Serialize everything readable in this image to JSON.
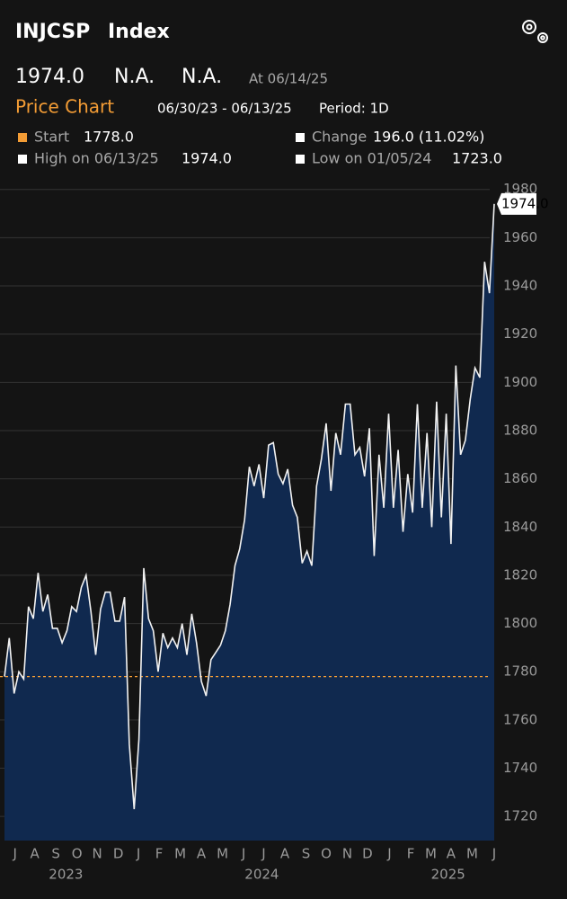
{
  "header": {
    "symbol": "INJCSP",
    "kind": "Index",
    "last": "1974.0",
    "field_2": "N.A.",
    "field_3": "N.A.",
    "as_of": "At 06/14/25"
  },
  "chart_header": {
    "title": "Price Chart",
    "range": "06/30/23 - 06/13/25",
    "period": "Period: 1D"
  },
  "legend": [
    {
      "label": "Start",
      "value": "1778.0",
      "marker_color": "#f39c35"
    },
    {
      "label": "Change",
      "value": "196.0 (11.02%)",
      "marker_color": "#ffffff"
    },
    {
      "label": "High on 06/13/25",
      "value": "1974.0",
      "marker_color": "#ffffff"
    },
    {
      "label": "Low on 01/05/24",
      "value": "1723.0",
      "marker_color": "#ffffff"
    }
  ],
  "chart_data": {
    "type": "area",
    "color": "#f2f2f2",
    "fill": "#10294f",
    "start_line_color": "#f39c35",
    "values": [
      1778,
      1794,
      1771,
      1780,
      1777,
      1807,
      1802,
      1821,
      1805,
      1812,
      1798,
      1798,
      1792,
      1797,
      1807,
      1805,
      1815,
      1820,
      1805,
      1787,
      1806,
      1813,
      1813,
      1801,
      1801,
      1811,
      1750,
      1723,
      1752,
      1823,
      1802,
      1797,
      1780,
      1796,
      1790,
      1794,
      1790,
      1800,
      1787,
      1804,
      1792,
      1776,
      1770,
      1785,
      1788,
      1791,
      1797,
      1808,
      1824,
      1831,
      1843,
      1865,
      1857,
      1866,
      1852,
      1874,
      1875,
      1862,
      1858,
      1864,
      1849,
      1844,
      1825,
      1830,
      1824,
      1857,
      1868,
      1883,
      1855,
      1879,
      1870,
      1891,
      1891,
      1870,
      1873,
      1861,
      1881,
      1828,
      1870,
      1848,
      1887,
      1848,
      1872,
      1838,
      1862,
      1846,
      1891,
      1848,
      1879,
      1840,
      1892,
      1844,
      1887,
      1833,
      1907,
      1870,
      1876,
      1893,
      1906,
      1902,
      1950,
      1937,
      1974
    ],
    "last_label": "1974.0",
    "xlim": [
      0,
      102
    ],
    "ylim": [
      1710,
      1984
    ],
    "yticks": [
      1720,
      1740,
      1760,
      1780,
      1800,
      1820,
      1840,
      1860,
      1880,
      1900,
      1920,
      1940,
      1960,
      1980
    ],
    "xticks": [
      {
        "value": 2.2,
        "label": "J"
      },
      {
        "value": 6.3,
        "label": "A"
      },
      {
        "value": 10.7,
        "label": "S"
      },
      {
        "value": 15.1,
        "label": "O"
      },
      {
        "value": 19.3,
        "label": "N"
      },
      {
        "value": 23.7,
        "label": "D"
      },
      {
        "value": 27.9,
        "label": "J"
      },
      {
        "value": 32.2,
        "label": "F"
      },
      {
        "value": 36.6,
        "label": "M"
      },
      {
        "value": 41.0,
        "label": "A"
      },
      {
        "value": 45.4,
        "label": "M"
      },
      {
        "value": 49.8,
        "label": "J"
      },
      {
        "value": 54.0,
        "label": "J"
      },
      {
        "value": 58.4,
        "label": "A"
      },
      {
        "value": 62.8,
        "label": "S"
      },
      {
        "value": 67.0,
        "label": "O"
      },
      {
        "value": 71.4,
        "label": "N"
      },
      {
        "value": 75.6,
        "label": "D"
      },
      {
        "value": 80.2,
        "label": "J"
      },
      {
        "value": 84.6,
        "label": "F"
      },
      {
        "value": 88.8,
        "label": "M"
      },
      {
        "value": 93.0,
        "label": "A"
      },
      {
        "value": 97.4,
        "label": "M"
      },
      {
        "value": 102.0,
        "label": "J"
      }
    ],
    "xgroups": [
      {
        "value": 12.8,
        "label": "2023"
      },
      {
        "value": 53.6,
        "label": "2024"
      },
      {
        "value": 92.4,
        "label": "2025"
      }
    ],
    "grid": true
  }
}
